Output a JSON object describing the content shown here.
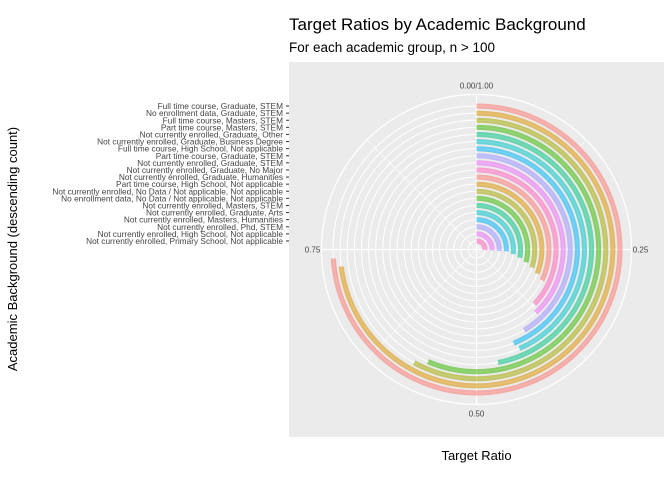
{
  "chart_data": {
    "type": "bar",
    "coord": "polar",
    "title": "Target Ratios by Academic Background",
    "subtitle": "For each academic group, n > 100",
    "xlabel": "Target Ratio",
    "ylabel": "Academic Background (descending count)",
    "xlim": [
      0,
      1
    ],
    "theta_ticks": [
      {
        "value": 0,
        "label": "0.00/1.00"
      },
      {
        "value": 0.25,
        "label": "0.25"
      },
      {
        "value": 0.5,
        "label": "0.50"
      },
      {
        "value": 0.75,
        "label": "0.75"
      }
    ],
    "grid": true,
    "legend": "none",
    "categories": [
      "Full time course, Graduate, STEM",
      "No enrollment data, Graduate, STEM",
      "Full time course, Masters, STEM",
      "Part time course, Masters, STEM",
      "Not currently enrolled, Graduate, Other",
      "Not currently enrolled, Graduate, Business Degree",
      "Full time course, High School, Not applicable",
      "Part time course, Graduate, STEM",
      "Not currently enrolled, Graduate, STEM",
      "Not currently enrolled, Graduate, No Major",
      "Not currently enrolled, Graduate, Humanities",
      "Part time course, High School, Not applicable",
      "Not currently enrolled, No Data / Not applicable, Not applicable",
      "No enrollment data, No Data / Not applicable, Not applicable",
      "Not currently enrolled, Masters, STEM",
      "Not currently enrolled, Graduate, Arts",
      "Not currently enrolled, Masters, Humanities",
      "Not currently enrolled, Phd, STEM",
      "Not currently enrolled, High School, Not applicable",
      "Not currently enrolled, Primary School, Not applicable"
    ],
    "values": [
      0.74,
      0.73,
      0.58,
      0.565,
      0.47,
      0.435,
      0.44,
      0.415,
      0.38,
      0.37,
      0.32,
      0.31,
      0.3,
      0.29,
      0.28,
      0.27,
      0.26,
      0.26,
      0.26,
      0.26
    ],
    "colors": [
      "#F8766D",
      "#D89000",
      "#A3A500",
      "#39B600",
      "#00BF7D",
      "#00BFC4",
      "#00B0F6",
      "#9590FF",
      "#E76BF3",
      "#FF62BC"
    ],
    "bar_alpha": 0.55,
    "panel_background": "#EBEBEB",
    "grid_color": "#FFFFFF"
  }
}
